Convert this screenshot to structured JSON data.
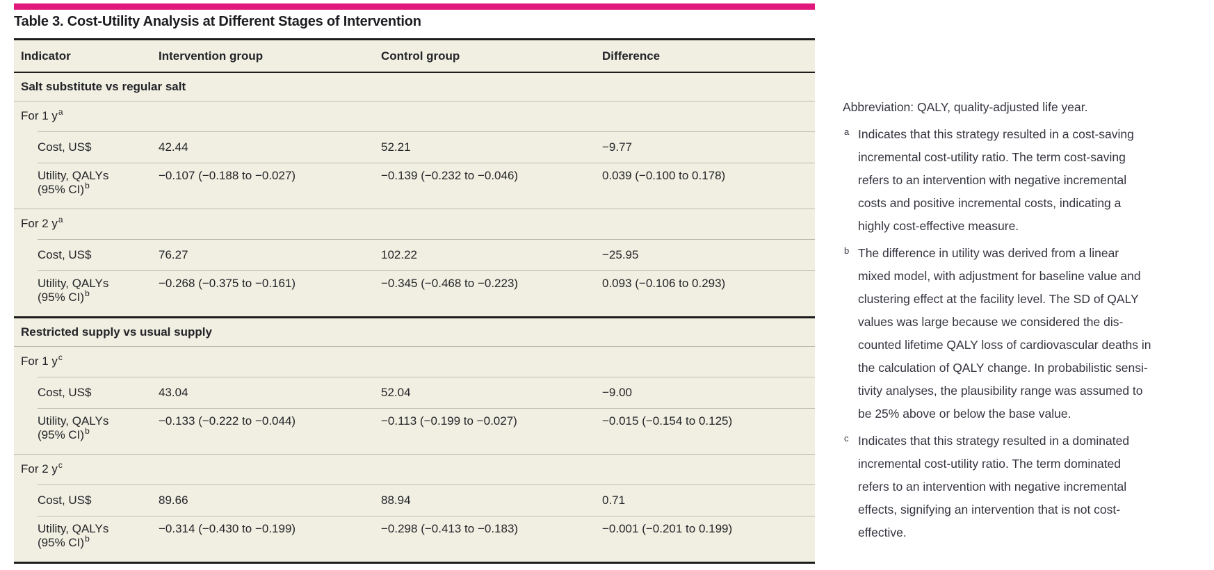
{
  "accent_color": "#e1197b",
  "table": {
    "title": "Table 3. Cost-Utility Analysis at Different Stages of Intervention",
    "columns": [
      "Indicator",
      "Intervention group",
      "Control group",
      "Difference"
    ],
    "sections": [
      {
        "header": "Salt substitute vs regular salt",
        "groups": [
          {
            "label": "For 1 y",
            "sup": "a",
            "rows": [
              {
                "label": "Cost, US$",
                "sup": "",
                "values": [
                  "42.44",
                  "52.21",
                  "−9.77"
                ]
              },
              {
                "label": "Utility, QALYs\n(95% CI)",
                "sup": "b",
                "values": [
                  "−0.107 (−0.188 to −0.027)",
                  "−0.139 (−0.232 to −0.046)",
                  "0.039 (−0.100 to 0.178)"
                ]
              }
            ]
          },
          {
            "label": "For 2 y",
            "sup": "a",
            "rows": [
              {
                "label": "Cost, US$",
                "sup": "",
                "values": [
                  "76.27",
                  "102.22",
                  "−25.95"
                ]
              },
              {
                "label": "Utility, QALYs\n(95% CI)",
                "sup": "b",
                "values": [
                  "−0.268 (−0.375 to −0.161)",
                  "−0.345 (−0.468 to −0.223)",
                  "0.093 (−0.106 to 0.293)"
                ]
              }
            ]
          }
        ]
      },
      {
        "header": "Restricted supply vs usual supply",
        "groups": [
          {
            "label": "For 1 y",
            "sup": "c",
            "rows": [
              {
                "label": "Cost, US$",
                "sup": "",
                "values": [
                  "43.04",
                  "52.04",
                  "−9.00"
                ]
              },
              {
                "label": "Utility, QALYs\n(95% CI)",
                "sup": "b",
                "values": [
                  "−0.133 (−0.222 to −0.044)",
                  "−0.113 (−0.199 to −0.027)",
                  "−0.015 (−0.154 to 0.125)"
                ]
              }
            ]
          },
          {
            "label": "For 2 y",
            "sup": "c",
            "rows": [
              {
                "label": "Cost, US$",
                "sup": "",
                "values": [
                  "89.66",
                  "88.94",
                  "0.71"
                ]
              },
              {
                "label": "Utility, QALYs\n(95% CI)",
                "sup": "b",
                "values": [
                  "−0.314 (−0.430 to −0.199)",
                  "−0.298 (−0.413 to −0.183)",
                  "−0.001 (−0.201 to 0.199)"
                ]
              }
            ]
          }
        ]
      }
    ]
  },
  "notes": {
    "abbreviation": "Abbreviation: QALY, quality-adjusted life year.",
    "footnotes": [
      {
        "marker": "a",
        "text": "Indicates that this strategy resulted in a cost-saving\nincremental cost-utility ratio. The term cost-saving\nrefers to an intervention with negative incremental\ncosts and positive incremental costs, indicating a\nhighly cost-effective measure."
      },
      {
        "marker": "b",
        "text": "The difference in utility was derived from a linear\nmixed model, with adjustment for baseline value and\nclustering effect at the facility level. The SD of QALY\nvalues was large because we considered the dis-\ncounted lifetime QALY loss of cardiovascular deaths in\nthe calculation of QALY change. In probabilistic sensi-\ntivity analyses, the plausibility range was assumed to\nbe 25% above or below the base value."
      },
      {
        "marker": "c",
        "text": "Indicates that this strategy resulted in a dominated\nincremental cost-utility ratio. The term dominated\nrefers to an intervention with negative incremental\neffects, signifying an intervention that is not cost-\neffective."
      }
    ]
  }
}
